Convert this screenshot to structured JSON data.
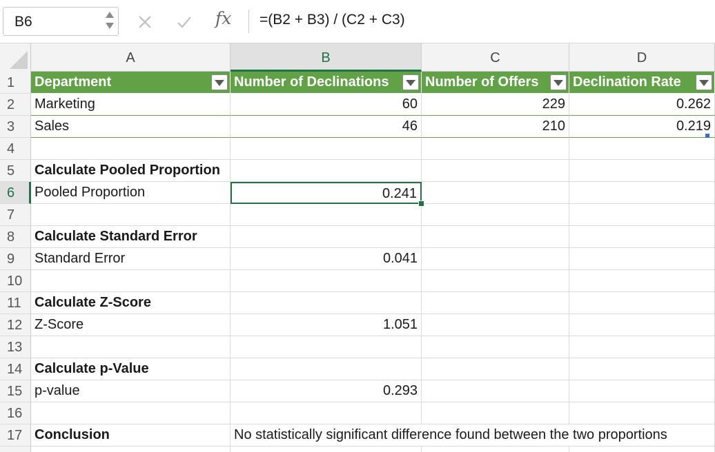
{
  "formula_bar": {
    "name_box": "B6",
    "cancel_icon": "x-icon",
    "enter_icon": "check-icon",
    "fx_label": "fx",
    "formula": "=(B2 + B3) / (C2 + C3)"
  },
  "columns": [
    "A",
    "B",
    "C",
    "D"
  ],
  "selected_column": "B",
  "rows": [
    "1",
    "2",
    "3",
    "4",
    "5",
    "6",
    "7",
    "8",
    "9",
    "10",
    "11",
    "12",
    "13",
    "14",
    "15",
    "16",
    "17"
  ],
  "selected_row": "6",
  "table": {
    "headers": [
      "Department",
      "Number of Declinations",
      "Number of Offers",
      "Declination Rate"
    ],
    "rows": [
      [
        "Marketing",
        "60",
        "229",
        "0.262"
      ],
      [
        "Sales",
        "46",
        "210",
        "0.219"
      ]
    ]
  },
  "sections": {
    "pooled_title": "Calculate Pooled Proportion",
    "pooled_label": "Pooled Proportion",
    "pooled_value": "0.241",
    "se_title": "Calculate Standard Error",
    "se_label": "Standard Error",
    "se_value": "0.041",
    "z_title": "Calculate Z-Score",
    "z_label": "Z-Score",
    "z_value": "1.051",
    "p_title": "Calculate p-Value",
    "p_label": "p-value",
    "p_value": "0.293",
    "conclusion_label": "Conclusion",
    "conclusion_text": "No statistically significant difference found between the two proportions"
  },
  "colors": {
    "table_header": "#60a245",
    "selection": "#217346"
  }
}
